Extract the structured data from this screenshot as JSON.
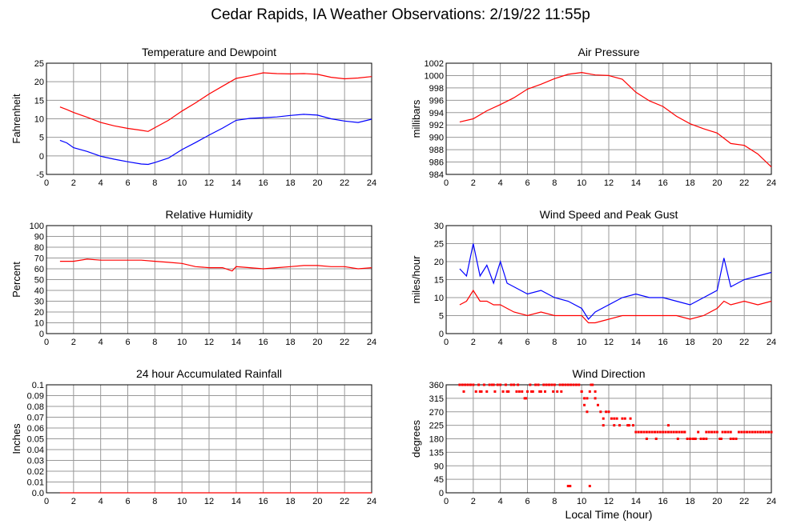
{
  "page": {
    "title": "Cedar Rapids, IA Weather Observations: 2/19/22 11:55p"
  },
  "chart_data": [
    {
      "type": "line",
      "title": "Temperature and Dewpoint",
      "ylabel": "Fahrenheit",
      "xlabel": "",
      "xlim": [
        0,
        24
      ],
      "ylim": [
        -5,
        25
      ],
      "xticks": [
        2,
        4,
        6,
        8,
        10,
        12,
        14,
        16,
        18,
        20,
        22,
        24
      ],
      "yticks": [
        -5,
        0,
        5,
        10,
        15,
        20,
        25
      ],
      "grid": true,
      "series": [
        {
          "color": "#ff0000",
          "x": [
            1,
            1.5,
            2,
            3,
            4,
            5,
            6,
            7,
            7.5,
            8,
            9,
            10,
            11,
            12,
            13,
            14,
            15,
            16,
            17,
            18,
            19,
            20,
            21,
            22,
            23,
            24
          ],
          "values": [
            13.2,
            12.5,
            11.7,
            10.4,
            9.0,
            8.1,
            7.4,
            6.9,
            6.6,
            7.6,
            9.6,
            12.1,
            14.3,
            16.7,
            18.8,
            20.9,
            21.6,
            22.4,
            22.2,
            22.1,
            22.2,
            22.0,
            21.2,
            20.8,
            21.0,
            21.4
          ]
        },
        {
          "color": "#0000ff",
          "x": [
            1,
            1.5,
            2,
            3,
            4,
            5,
            6,
            7,
            7.5,
            8,
            9,
            10,
            11,
            12,
            13,
            14,
            15,
            16,
            17,
            18,
            19,
            20,
            21,
            22,
            23,
            24
          ],
          "values": [
            4.2,
            3.5,
            2.2,
            1.2,
            -0.1,
            -0.9,
            -1.6,
            -2.2,
            -2.3,
            -1.8,
            -0.6,
            1.7,
            3.6,
            5.6,
            7.5,
            9.6,
            10.1,
            10.3,
            10.5,
            10.9,
            11.2,
            11.0,
            10.0,
            9.4,
            9.0,
            9.9
          ]
        }
      ]
    },
    {
      "type": "line",
      "title": "Air Pressure",
      "ylabel": "millibars",
      "xlabel": "",
      "xlim": [
        0,
        24
      ],
      "ylim": [
        984,
        1002
      ],
      "xticks": [
        2,
        4,
        6,
        8,
        10,
        12,
        14,
        16,
        18,
        20,
        22,
        24
      ],
      "yticks": [
        984,
        986,
        988,
        990,
        992,
        994,
        996,
        998,
        1000,
        1002
      ],
      "grid": true,
      "series": [
        {
          "color": "#ff0000",
          "x": [
            1,
            2,
            3,
            4,
            5,
            6,
            7,
            8,
            9,
            10,
            11,
            12,
            13,
            14,
            15,
            16,
            17,
            18,
            19,
            20,
            21,
            22,
            23,
            24
          ],
          "values": [
            992.5,
            993.0,
            994.3,
            995.3,
            996.4,
            997.8,
            998.6,
            999.5,
            1000.2,
            1000.5,
            1000.1,
            1000.0,
            999.4,
            997.3,
            995.9,
            995.0,
            993.4,
            992.2,
            991.4,
            990.7,
            989.0,
            988.7,
            987.3,
            985.2
          ]
        }
      ]
    },
    {
      "type": "line",
      "title": "Relative Humidity",
      "ylabel": "Percent",
      "xlabel": "",
      "xlim": [
        0,
        24
      ],
      "ylim": [
        0,
        100
      ],
      "xticks": [
        2,
        4,
        6,
        8,
        10,
        12,
        14,
        16,
        18,
        20,
        22,
        24
      ],
      "yticks": [
        0,
        10,
        20,
        30,
        40,
        50,
        60,
        70,
        80,
        90,
        100
      ],
      "grid": true,
      "series": [
        {
          "color": "#ff0000",
          "x": [
            1,
            2,
            3,
            4,
            5,
            6,
            7,
            8,
            9,
            10,
            11,
            12,
            13,
            13.7,
            14,
            15,
            16,
            17,
            18,
            19,
            20,
            21,
            22,
            23,
            24
          ],
          "values": [
            67,
            67,
            69,
            68,
            68,
            68,
            68,
            67,
            66,
            65,
            62,
            61,
            61,
            58,
            62,
            61,
            60,
            61,
            62,
            63,
            63,
            62,
            62,
            60,
            61
          ]
        }
      ]
    },
    {
      "type": "line",
      "title": "Wind Speed and Peak Gust",
      "ylabel": "miles/hour",
      "xlabel": "",
      "xlim": [
        0,
        24
      ],
      "ylim": [
        0,
        30
      ],
      "xticks": [
        2,
        4,
        6,
        8,
        10,
        12,
        14,
        16,
        18,
        20,
        22,
        24
      ],
      "yticks": [
        0,
        5,
        10,
        15,
        20,
        25,
        30
      ],
      "grid": true,
      "series": [
        {
          "color": "#0000ff",
          "x": [
            1,
            1.5,
            2,
            2.5,
            3,
            3.5,
            4,
            4.5,
            5,
            6,
            7,
            8,
            9,
            10,
            10.5,
            11,
            12,
            13,
            14,
            15,
            16,
            17,
            18,
            19,
            20,
            20.5,
            21,
            22,
            23,
            24
          ],
          "values": [
            18,
            16,
            25,
            16,
            19,
            14,
            20,
            14,
            13,
            11,
            12,
            10,
            9,
            7,
            4,
            6,
            8,
            10,
            11,
            10,
            10,
            9,
            8,
            10,
            12,
            21,
            13,
            15,
            16,
            17
          ]
        },
        {
          "color": "#ff0000",
          "x": [
            1,
            1.5,
            2,
            2.5,
            3,
            3.5,
            4,
            4.5,
            5,
            6,
            7,
            8,
            9,
            10,
            10.5,
            11,
            12,
            13,
            14,
            15,
            16,
            17,
            18,
            19,
            20,
            20.5,
            21,
            22,
            23,
            24
          ],
          "values": [
            8,
            9,
            12,
            9,
            9,
            8,
            8,
            7,
            6,
            5,
            6,
            5,
            5,
            5,
            3,
            3,
            4,
            5,
            5,
            5,
            5,
            5,
            4,
            5,
            7,
            9,
            8,
            9,
            8,
            9
          ]
        }
      ]
    },
    {
      "type": "line",
      "title": "24 hour Accumulated Rainfall",
      "ylabel": "Inches",
      "xlabel": "",
      "xlim": [
        0,
        24
      ],
      "ylim": [
        0,
        0.1
      ],
      "xticks": [
        2,
        4,
        6,
        8,
        10,
        12,
        14,
        16,
        18,
        20,
        22,
        24
      ],
      "yticks": [
        0.0,
        0.01,
        0.02,
        0.03,
        0.04,
        0.05,
        0.06,
        0.07,
        0.08,
        0.09,
        0.1
      ],
      "ytick_labels": [
        "0.0",
        "0.01",
        "0.02",
        "0.03",
        "0.04",
        "0.05",
        "0.06",
        "0.07",
        "0.08",
        "0.09",
        "0.1"
      ],
      "grid": true,
      "series": [
        {
          "color": "#ff0000",
          "x": [
            1,
            24
          ],
          "values": [
            0,
            0
          ]
        }
      ]
    },
    {
      "type": "scatter",
      "title": "Wind Direction",
      "ylabel": "degrees",
      "xlabel": "Local Time (hour)",
      "xlim": [
        0,
        24
      ],
      "ylim": [
        0,
        360
      ],
      "xticks": [
        2,
        4,
        6,
        8,
        10,
        12,
        14,
        16,
        18,
        20,
        22,
        24
      ],
      "yticks": [
        0,
        45,
        90,
        135,
        180,
        225,
        270,
        315,
        360
      ],
      "grid": true,
      "series": [
        {
          "color": "#ff0000",
          "x": [
            1.0,
            1.2,
            1.4,
            1.6,
            1.8,
            2.0,
            2.2,
            2.4,
            2.6,
            2.8,
            3.0,
            3.2,
            3.4,
            3.6,
            3.8,
            4.0,
            4.2,
            4.4,
            4.6,
            4.8,
            5.0,
            5.2,
            5.4,
            5.6,
            5.8,
            6.0,
            6.2,
            6.4,
            6.6,
            6.8,
            7.0,
            7.2,
            7.4,
            7.6,
            7.8,
            8.0,
            8.2,
            8.4,
            8.6,
            8.8,
            9.0,
            9.2,
            9.4,
            9.6,
            9.8,
            10.0,
            10.2,
            10.4,
            10.6,
            10.8,
            11.0,
            11.2,
            11.4,
            11.6,
            11.8,
            12.0,
            12.2,
            12.4,
            12.6,
            12.8,
            13.0,
            13.2,
            13.4,
            13.6,
            13.8,
            14.0,
            14.2,
            14.4,
            14.6,
            14.8,
            15.0,
            15.2,
            15.4,
            15.6,
            15.8,
            16.0,
            16.2,
            16.4,
            16.6,
            16.8,
            17.0,
            17.2,
            17.4,
            17.6,
            17.8,
            18.0,
            18.2,
            18.4,
            18.6,
            18.8,
            19.0,
            19.2,
            19.4,
            19.6,
            19.8,
            20.0,
            20.2,
            20.4,
            20.6,
            20.8,
            21.0,
            21.2,
            21.4,
            21.6,
            21.8,
            22.0,
            22.2,
            22.4,
            22.6,
            22.8,
            23.0,
            23.2,
            23.4,
            23.6,
            23.8,
            24.0,
            1.3,
            2.5,
            3.5,
            4.5,
            5.3,
            5.9,
            6.3,
            6.9,
            7.3,
            7.9,
            8.5,
            9.0,
            9.15,
            10.0,
            10.2,
            10.4,
            10.6,
            10.7,
            11.0,
            11.6,
            12.4,
            13.5,
            14.8,
            15.5,
            16.4,
            17.1,
            17.6,
            18.3,
            19.2,
            20.3,
            21.0
          ],
          "values": [
            360,
            360,
            360,
            360,
            360,
            360,
            337.5,
            360,
            337.5,
            360,
            337.5,
            360,
            360,
            337.5,
            360,
            360,
            337.5,
            360,
            337.5,
            360,
            360,
            337.5,
            337.5,
            337.5,
            315,
            337.5,
            360,
            337.5,
            360,
            360,
            337.5,
            360,
            360,
            360,
            360,
            360,
            337.5,
            360,
            360,
            360,
            360,
            360,
            360,
            360,
            360,
            337.5,
            292.5,
            315,
            337.5,
            360,
            315,
            292.5,
            270,
            247.5,
            270,
            270,
            247.5,
            247.5,
            247.5,
            225,
            247.5,
            247.5,
            225,
            247.5,
            225,
            202.5,
            202.5,
            202.5,
            202.5,
            202.5,
            202.5,
            202.5,
            202.5,
            202.5,
            202.5,
            202.5,
            202.5,
            202.5,
            202.5,
            202.5,
            202.5,
            202.5,
            202.5,
            202.5,
            180,
            180,
            180,
            180,
            202.5,
            180,
            180,
            202.5,
            202.5,
            202.5,
            202.5,
            202.5,
            180,
            202.5,
            202.5,
            202.5,
            202.5,
            180,
            180,
            202.5,
            202.5,
            202.5,
            202.5,
            202.5,
            202.5,
            202.5,
            202.5,
            202.5,
            202.5,
            202.5,
            202.5,
            202.5,
            337.5,
            337.5,
            360,
            337.5,
            360,
            315,
            337.5,
            337.5,
            337.5,
            337.5,
            337.5,
            22.5,
            22.5,
            337.5,
            315,
            270,
            22.5,
            360,
            337.5,
            225,
            225,
            225,
            180,
            180,
            225,
            180,
            202.5,
            180,
            180,
            180,
            180
          ]
        }
      ]
    }
  ]
}
